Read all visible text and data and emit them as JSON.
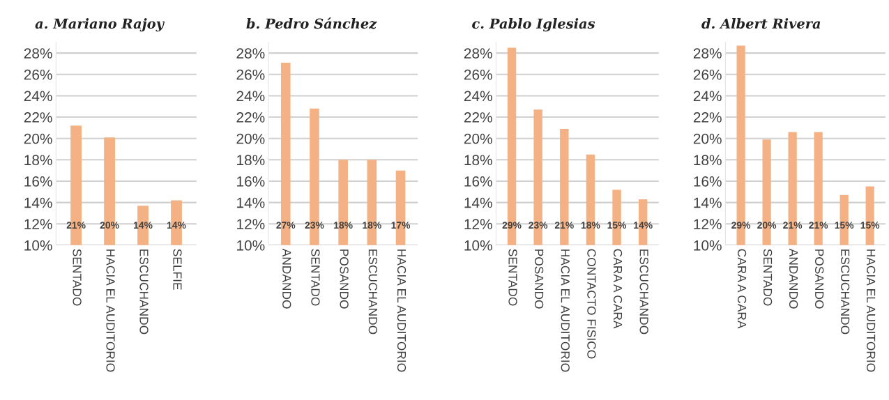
{
  "chart_data": [
    {
      "type": "bar",
      "title": "a. Mariano Rajoy",
      "categories": [
        "SENTADO",
        "HACIA EL AUDITORIO",
        "ESCUCHANDO",
        "SELFIE"
      ],
      "values": [
        21.2,
        20.1,
        13.7,
        14.2
      ],
      "value_labels": [
        "21%",
        "20%",
        "14%",
        "14%"
      ],
      "color": "#f4b183",
      "ylim": [
        10,
        29
      ],
      "yticks": [
        {
          "value": 10,
          "label": "10%"
        },
        {
          "value": 12,
          "label": "12%"
        },
        {
          "value": 14,
          "label": "14%"
        },
        {
          "value": 16,
          "label": "16%"
        },
        {
          "value": 18,
          "label": "18%"
        },
        {
          "value": 20,
          "label": "20%"
        },
        {
          "value": 22,
          "label": "22%"
        },
        {
          "value": 24,
          "label": "24%"
        },
        {
          "value": 26,
          "label": "26%"
        },
        {
          "value": 28,
          "label": "28%"
        }
      ],
      "grid": "y"
    },
    {
      "type": "bar",
      "title": "b. Pedro Sánchez",
      "categories": [
        "ANDANDO",
        "SENTADO",
        "POSANDO",
        "ESCUCHANDO",
        "HACIA EL AUDITORIO"
      ],
      "values": [
        27.1,
        22.8,
        18.0,
        18.0,
        17.0
      ],
      "value_labels": [
        "27%",
        "23%",
        "18%",
        "18%",
        "17%"
      ],
      "color": "#f4b183",
      "ylim": [
        10,
        29
      ],
      "yticks": [
        {
          "value": 10,
          "label": "10%"
        },
        {
          "value": 12,
          "label": "12%"
        },
        {
          "value": 14,
          "label": "14%"
        },
        {
          "value": 16,
          "label": "16%"
        },
        {
          "value": 18,
          "label": "18%"
        },
        {
          "value": 20,
          "label": "20%"
        },
        {
          "value": 22,
          "label": "22%"
        },
        {
          "value": 24,
          "label": "24%"
        },
        {
          "value": 26,
          "label": "26%"
        },
        {
          "value": 28,
          "label": "28%"
        }
      ],
      "grid": "y"
    },
    {
      "type": "bar",
      "title": "c. Pablo Iglesias",
      "categories": [
        "SENTADO",
        "POSANDO",
        "HACIA EL AUDITORIO",
        "CONTACTO FISICO",
        "CARA A CARA",
        "ESCUCHANDO"
      ],
      "values": [
        28.5,
        22.7,
        20.9,
        18.5,
        15.2,
        14.3
      ],
      "value_labels": [
        "29%",
        "23%",
        "21%",
        "18%",
        "15%",
        "14%"
      ],
      "color": "#f4b183",
      "ylim": [
        10,
        29
      ],
      "yticks": [
        {
          "value": 10,
          "label": "10%"
        },
        {
          "value": 12,
          "label": "12%"
        },
        {
          "value": 14,
          "label": "14%"
        },
        {
          "value": 16,
          "label": "16%"
        },
        {
          "value": 18,
          "label": "18%"
        },
        {
          "value": 20,
          "label": "20%"
        },
        {
          "value": 22,
          "label": "22%"
        },
        {
          "value": 24,
          "label": "24%"
        },
        {
          "value": 26,
          "label": "26%"
        },
        {
          "value": 28,
          "label": "28%"
        }
      ],
      "grid": "y"
    },
    {
      "type": "bar",
      "title": "d. Albert Rivera",
      "categories": [
        "CARA A CARA",
        "SENTADO",
        "ANDANDO",
        "POSANDO",
        "ESCUCHANDO",
        "HACIA EL AUDITORIO"
      ],
      "values": [
        28.7,
        19.9,
        20.6,
        20.6,
        14.7,
        15.5
      ],
      "value_labels": [
        "29%",
        "20%",
        "21%",
        "21%",
        "15%",
        "15%"
      ],
      "color": "#f4b183",
      "ylim": [
        10,
        29
      ],
      "yticks": [
        {
          "value": 10,
          "label": "10%"
        },
        {
          "value": 12,
          "label": "12%"
        },
        {
          "value": 14,
          "label": "14%"
        },
        {
          "value": 16,
          "label": "16%"
        },
        {
          "value": 18,
          "label": "18%"
        },
        {
          "value": 20,
          "label": "20%"
        },
        {
          "value": 22,
          "label": "22%"
        },
        {
          "value": 24,
          "label": "24%"
        },
        {
          "value": 26,
          "label": "26%"
        },
        {
          "value": 28,
          "label": "28%"
        }
      ],
      "grid": "y"
    }
  ]
}
